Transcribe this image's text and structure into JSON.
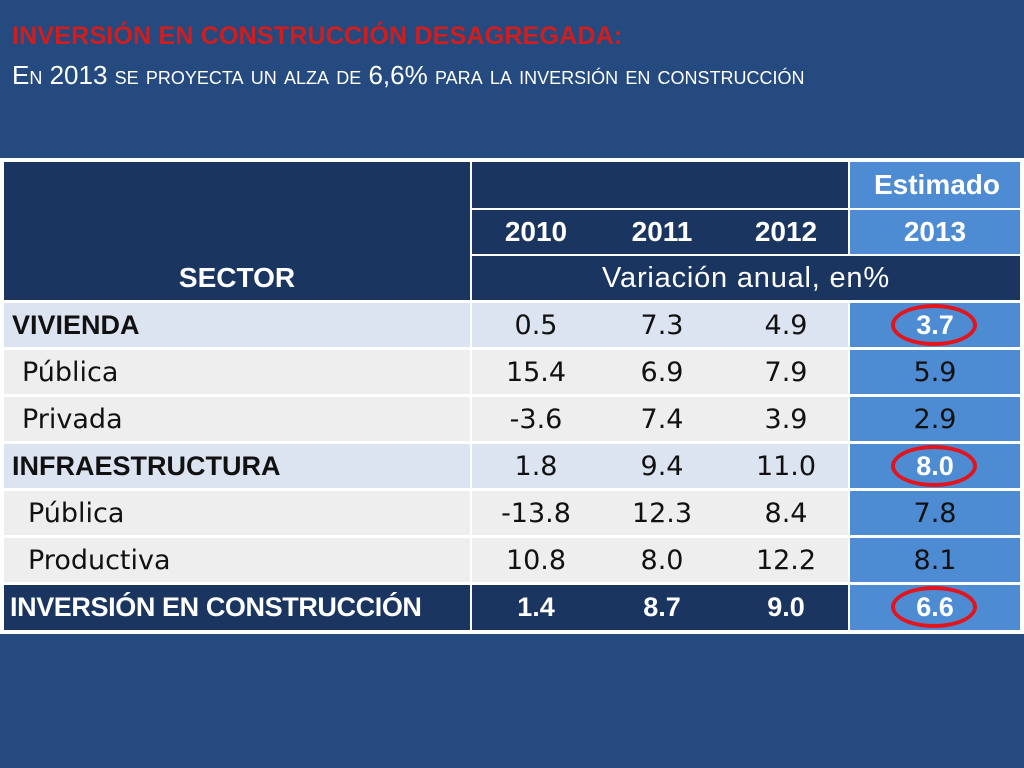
{
  "slide": {
    "title": "INVERSIÓN EN CONSTRUCCIÓN DESAGREGADA:",
    "subtitle": "En 2013 se proyecta un alza de 6,6% para la inversión en construcción"
  },
  "table": {
    "estimado_label": "Estimado",
    "sector_label": "SECTOR",
    "years": [
      "2010",
      "2011",
      "2012",
      "2013"
    ],
    "variation_label": "Variación anual, en%",
    "rows": [
      {
        "label": "VIVIENDA",
        "values": [
          "0.5",
          "7.3",
          "4.9",
          "3.7"
        ]
      },
      {
        "label": "Pública",
        "values": [
          "15.4",
          "6.9",
          "7.9",
          "5.9"
        ]
      },
      {
        "label": "Privada",
        "values": [
          "-3.6",
          "7.4",
          "3.9",
          "2.9"
        ]
      },
      {
        "label": "INFRAESTRUCTURA",
        "values": [
          "1.8",
          "9.4",
          "11.0",
          "8.0"
        ]
      },
      {
        "label": "Pública",
        "values": [
          "-13.8",
          "12.3",
          "8.4",
          "7.8"
        ]
      },
      {
        "label": "Productiva",
        "values": [
          "10.8",
          "8.0",
          "12.2",
          "8.1"
        ]
      },
      {
        "label": "INVERSIÓN EN CONSTRUCCIÓN",
        "values": [
          "1.4",
          "8.7",
          "9.0",
          "6.6"
        ]
      }
    ]
  },
  "colors": {
    "background": "#244a7f",
    "header": "#1a3560",
    "estimado_column": "#4d8bd2",
    "light_row": "#dde4f1",
    "gray_row": "#eeeeee",
    "highlight_circle": "#e3141b",
    "title": "#d21d1d"
  }
}
